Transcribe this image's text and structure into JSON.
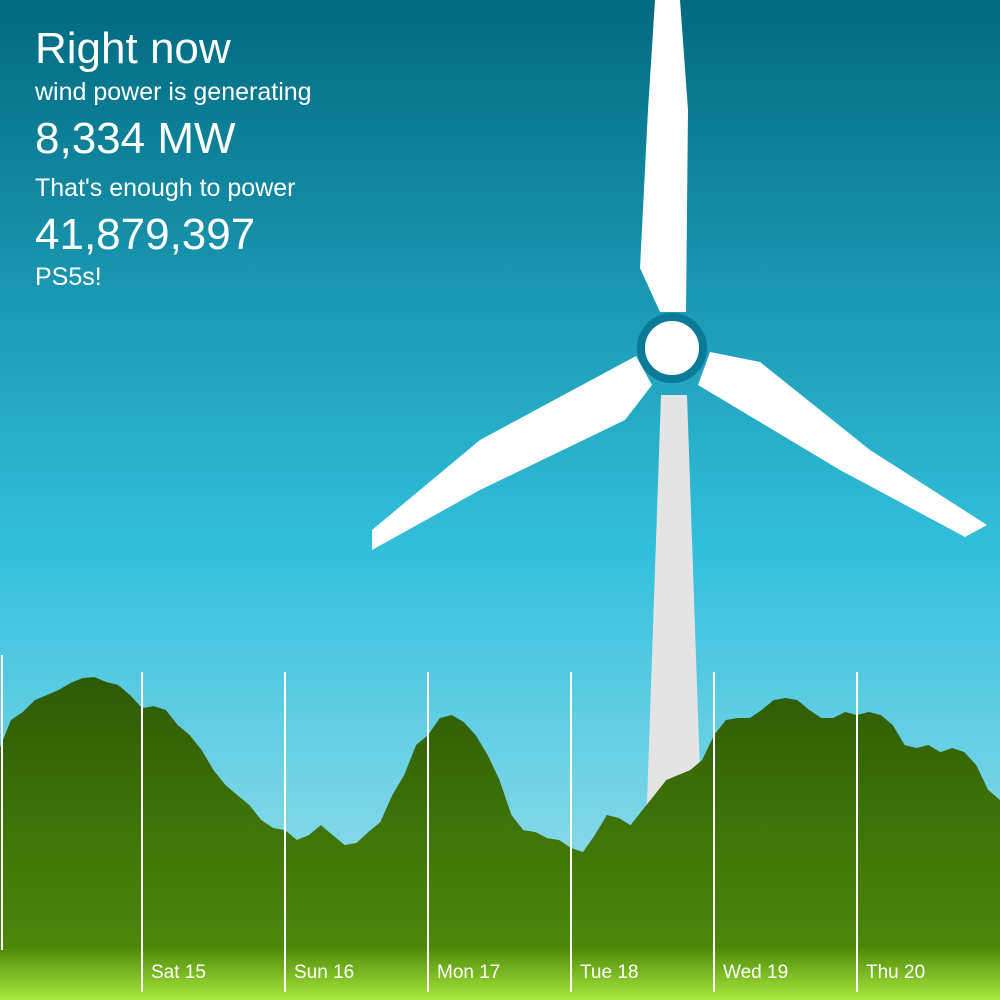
{
  "header": {
    "line1": "Right now",
    "line2": "wind power is generating",
    "power": "8,334 MW",
    "line3": "That's enough to power",
    "count": "41,879,397",
    "line4": "PS5s!"
  },
  "chart_data": {
    "type": "area",
    "color": "#3d6f06",
    "day_labels": [
      "Sat 15",
      "Sun 16",
      "Mon 17",
      "Tue 18",
      "Wed 19",
      "Thu 20"
    ],
    "values": [
      11150,
      12840,
      13290,
      13960,
      14240,
      14530,
      14920,
      15200,
      15260,
      14980,
      14810,
      14240,
      13510,
      13620,
      13400,
      12550,
      11990,
      11150,
      10020,
      9180,
      8610,
      8050,
      7210,
      6760,
      6640,
      6080,
      6360,
      6920,
      6360,
      5800,
      5910,
      6530,
      7090,
      8610,
      9740,
      11430,
      11990,
      12950,
      13120,
      12720,
      11990,
      10870,
      9460,
      7490,
      6640,
      6530,
      6190,
      6080,
      5630,
      5400,
      6360,
      7490,
      7320,
      6920,
      7770,
      8610,
      9460,
      9740,
      10020,
      10580,
      11990,
      12840,
      12950,
      12950,
      13400,
      13960,
      14080,
      13960,
      13400,
      12950,
      12950,
      13290,
      13120,
      13290,
      13120,
      12550,
      11430,
      11260,
      11430,
      11030,
      11260,
      11030,
      10300,
      8900,
      8334
    ]
  }
}
